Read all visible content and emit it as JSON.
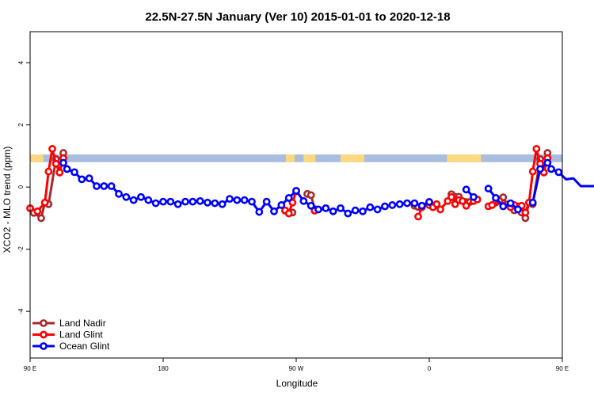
{
  "chart_data": {
    "type": "line",
    "title": "22.5N-27.5N January (Ver 10)   2015-01-01 to 2020-12-18",
    "xlabel": "Longitude",
    "ylabel": "XCO2 - MLO trend (ppm)",
    "xlim": [
      90,
      450
    ],
    "ylim": [
      -5.5,
      5
    ],
    "x_ticks": [
      {
        "value": 90,
        "label": "90 E"
      },
      {
        "value": 180,
        "label": "180"
      },
      {
        "value": 270,
        "label": "90 W"
      },
      {
        "value": 360,
        "label": "0"
      },
      {
        "value": 450,
        "label": "90 E"
      },
      {
        "value": 540,
        "label": "180"
      }
    ],
    "y_ticks": [
      {
        "value": -4,
        "label": "-4"
      },
      {
        "value": -2,
        "label": "-2"
      },
      {
        "value": 0,
        "label": "0"
      },
      {
        "value": 2,
        "label": "2"
      },
      {
        "value": 4,
        "label": "4"
      }
    ],
    "grid": false,
    "legend_position": "bottom-left",
    "land_band": {
      "y_range": [
        0.8,
        1.05
      ],
      "ocean_color": "#a9bedf",
      "land_color": "#fcd980",
      "land_segments_lon": [
        [
          90,
          99
        ],
        [
          263,
          269
        ],
        [
          275,
          283
        ],
        [
          300,
          316
        ],
        [
          372,
          395
        ],
        [
          450,
          459
        ]
      ]
    },
    "series": [
      {
        "name": "Land Nadir",
        "color": "#a52a2a",
        "points": [
          [
            92.5,
            -0.83
          ],
          [
            97.5,
            -1.0
          ],
          [
            100,
            -0.5
          ],
          [
            102.5,
            -0.55
          ],
          [
            107.5,
            0.9
          ],
          [
            110,
            0.47
          ],
          [
            112.5,
            1.1
          ],
          [
            262.5,
            -0.76
          ],
          [
            267.5,
            -0.82
          ],
          [
            277.5,
            -0.22
          ],
          [
            280,
            -0.26
          ],
          [
            282.5,
            -0.71
          ],
          [
            350,
            -0.6
          ],
          [
            352.5,
            -0.64
          ],
          [
            355,
            -0.6
          ],
          [
            360,
            -0.58
          ],
          [
            375,
            -0.23
          ],
          [
            377.5,
            -0.31
          ],
          [
            380,
            -0.31
          ],
          [
            385,
            -0.48
          ],
          [
            387.5,
            -0.48
          ],
          [
            405,
            -0.5
          ],
          [
            407.5,
            -0.4
          ],
          [
            410,
            -0.33
          ],
          [
            412.5,
            -0.56
          ],
          [
            415,
            -0.62
          ],
          [
            417.5,
            -0.75
          ],
          [
            420,
            -0.62
          ],
          [
            422.5,
            -0.82
          ],
          [
            425,
            -1.0
          ],
          [
            427.5,
            -0.5
          ],
          [
            430,
            -0.55
          ],
          [
            435,
            0.9
          ],
          [
            437.5,
            0.47
          ],
          [
            440,
            1.1
          ]
        ]
      },
      {
        "name": "Land Glint",
        "color": "#ff0000",
        "points": [
          [
            90,
            -0.68
          ],
          [
            95,
            -0.78
          ],
          [
            100,
            -0.5
          ],
          [
            102.5,
            0.5
          ],
          [
            105,
            1.23
          ],
          [
            107.5,
            0.75
          ],
          [
            110,
            0.47
          ],
          [
            112.5,
            0.93
          ],
          [
            262.5,
            -0.75
          ],
          [
            265,
            -0.85
          ],
          [
            267.5,
            -0.5
          ],
          [
            270,
            -0.14
          ],
          [
            282.5,
            -0.76
          ],
          [
            352.5,
            -0.95
          ],
          [
            355,
            -0.65
          ],
          [
            360,
            -0.48
          ],
          [
            362.5,
            -0.65
          ],
          [
            365,
            -0.55
          ],
          [
            367.5,
            -0.72
          ],
          [
            372.5,
            -0.45
          ],
          [
            375,
            -0.32
          ],
          [
            377.5,
            -0.55
          ],
          [
            380,
            -0.42
          ],
          [
            382.5,
            -0.45
          ],
          [
            385,
            -0.6
          ],
          [
            390,
            -0.45
          ],
          [
            392.5,
            -0.4
          ],
          [
            400,
            -0.62
          ],
          [
            402.5,
            -0.58
          ],
          [
            407.5,
            -0.45
          ],
          [
            410,
            -0.6
          ],
          [
            415,
            -0.65
          ],
          [
            417.5,
            -0.58
          ],
          [
            420,
            -0.72
          ],
          [
            422.5,
            -0.6
          ],
          [
            425,
            -0.82
          ],
          [
            427.5,
            -0.5
          ],
          [
            430,
            0.5
          ],
          [
            432.5,
            1.23
          ],
          [
            435,
            0.75
          ],
          [
            437.5,
            0.47
          ],
          [
            440,
            0.93
          ]
        ]
      },
      {
        "name": "Ocean Glint",
        "color": "#0000ff",
        "points": [
          [
            112.5,
            0.78
          ],
          [
            115,
            0.58
          ],
          [
            120,
            0.48
          ],
          [
            125,
            0.25
          ],
          [
            130,
            0.28
          ],
          [
            135,
            0.03
          ],
          [
            140,
            0.03
          ],
          [
            145,
            0.03
          ],
          [
            150,
            -0.22
          ],
          [
            155,
            -0.32
          ],
          [
            160,
            -0.42
          ],
          [
            165,
            -0.32
          ],
          [
            170,
            -0.42
          ],
          [
            175,
            -0.52
          ],
          [
            180,
            -0.47
          ],
          [
            185,
            -0.47
          ],
          [
            190,
            -0.55
          ],
          [
            195,
            -0.47
          ],
          [
            200,
            -0.47
          ],
          [
            205,
            -0.45
          ],
          [
            210,
            -0.5
          ],
          [
            215,
            -0.52
          ],
          [
            220,
            -0.55
          ],
          [
            225,
            -0.38
          ],
          [
            230,
            -0.42
          ],
          [
            235,
            -0.42
          ],
          [
            240,
            -0.47
          ],
          [
            245,
            -0.8
          ],
          [
            250,
            -0.47
          ],
          [
            255,
            -0.78
          ],
          [
            260,
            -0.58
          ],
          [
            265,
            -0.35
          ],
          [
            270,
            -0.12
          ],
          [
            275,
            -0.45
          ],
          [
            280,
            -0.6
          ],
          [
            285,
            -0.72
          ],
          [
            290,
            -0.68
          ],
          [
            295,
            -0.78
          ],
          [
            300,
            -0.68
          ],
          [
            305,
            -0.85
          ],
          [
            310,
            -0.75
          ],
          [
            315,
            -0.78
          ],
          [
            320,
            -0.65
          ],
          [
            325,
            -0.72
          ],
          [
            330,
            -0.62
          ],
          [
            335,
            -0.58
          ],
          [
            340,
            -0.55
          ],
          [
            345,
            -0.52
          ],
          [
            350,
            -0.52
          ],
          [
            355,
            -0.6
          ],
          [
            360,
            -0.48
          ],
          [
            385,
            -0.08
          ],
          [
            390,
            -0.32
          ],
          [
            400,
            -0.05
          ],
          [
            405,
            -0.35
          ],
          [
            410,
            -0.62
          ],
          [
            415,
            -0.52
          ],
          [
            420,
            -0.72
          ],
          [
            430,
            -0.5
          ],
          [
            435,
            0.58
          ],
          [
            440,
            0.78
          ],
          [
            442.5,
            0.58
          ],
          [
            447.5,
            0.48
          ],
          [
            452.5,
            0.25
          ],
          [
            457.5,
            0.28
          ],
          [
            462.5,
            0.03
          ],
          [
            467.5,
            0.03
          ],
          [
            472.5,
            0.03
          ],
          [
            477.5,
            -0.22
          ],
          [
            482.5,
            -0.32
          ],
          [
            487.5,
            -0.42
          ],
          [
            492.5,
            -0.32
          ],
          [
            497.5,
            -0.42
          ]
        ]
      }
    ]
  }
}
